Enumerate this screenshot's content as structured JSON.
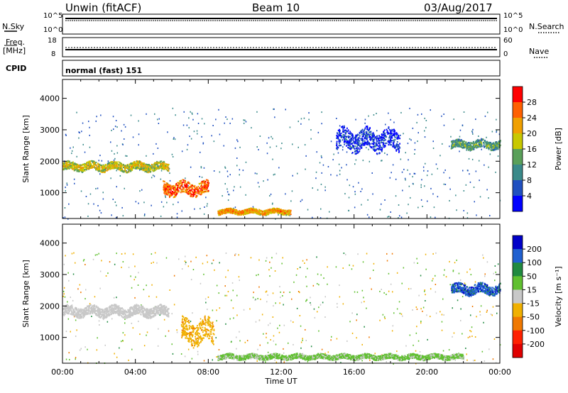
{
  "header": {
    "radar": "Unwin (fitACF)",
    "beam": "Beam 10",
    "date": "03/Aug/2017"
  },
  "strip_labels": {
    "nsky": "N.Sky",
    "nsearch": "N.Search",
    "freq": "Freq.",
    "freq_unit": "[MHz]",
    "nave": "Nave",
    "cpid": "CPID",
    "cpid_value": "normal (fast) 151"
  },
  "strip_ticks": {
    "noise_left": [
      "10^5",
      "10^0"
    ],
    "noise_right": [
      "10^5",
      "10^0"
    ],
    "freq_left": [
      "18",
      "8"
    ],
    "nave_right": [
      "60",
      "0"
    ]
  },
  "chart_data": [
    {
      "type": "heatmap",
      "panel": "power",
      "xlabel": "",
      "ylabel": "Slant Range [km]",
      "xlim": [
        0,
        24
      ],
      "ylim": [
        180,
        4600
      ],
      "yticks": [
        1000,
        2000,
        3000,
        4000
      ],
      "colorbar": {
        "label": "Power [dB]",
        "ticks": [
          "4",
          "8",
          "12",
          "16",
          "20",
          "24",
          "28"
        ],
        "colors": [
          "#0000ff",
          "#2050c0",
          "#3a8a8a",
          "#5aa05a",
          "#c8c800",
          "#f0a000",
          "#ff6000",
          "#ff0000"
        ]
      },
      "features": [
        {
          "t_start": 0.0,
          "t_end": 5.8,
          "range_center": 1850,
          "range_width": 250,
          "level_db": 20
        },
        {
          "t_start": 5.5,
          "t_end": 8.0,
          "range_center": 1150,
          "range_width": 400,
          "level_db": 28
        },
        {
          "t_start": 8.5,
          "t_end": 12.5,
          "range_center": 420,
          "range_width": 150,
          "level_db": 24
        },
        {
          "t_start": 21.3,
          "t_end": 24.0,
          "range_center": 2550,
          "range_width": 250,
          "level_db": 14
        },
        {
          "t_start": 15.0,
          "t_end": 18.5,
          "range_center": 2700,
          "range_width": 600,
          "level_db": 6
        }
      ]
    },
    {
      "type": "heatmap",
      "panel": "velocity",
      "xlabel": "Time UT",
      "ylabel": "Slant Range [km]",
      "xlim": [
        0,
        24
      ],
      "ylim": [
        180,
        4600
      ],
      "xticks": [
        "00:00",
        "04:00",
        "08:00",
        "12:00",
        "16:00",
        "20:00",
        "00:00"
      ],
      "yticks": [
        1000,
        2000,
        3000,
        4000
      ],
      "colorbar": {
        "label": "Velocity [m s⁻¹]",
        "ticks": [
          "200",
          "100",
          "50",
          "15",
          "-15",
          "-50",
          "-100",
          "-200"
        ],
        "colors": [
          "#0000c8",
          "#2060d0",
          "#208a40",
          "#60c030",
          "#c8c8c8",
          "#f0b000",
          "#f07800",
          "#ff2000",
          "#e00000"
        ]
      },
      "features": [
        {
          "t_start": 0.0,
          "t_end": 5.8,
          "range_center": 1850,
          "range_width": 300,
          "velocity": 0
        },
        {
          "t_start": 6.5,
          "t_end": 8.3,
          "range_center": 1200,
          "range_width": 700,
          "velocity": -40
        },
        {
          "t_start": 8.5,
          "t_end": 22.0,
          "range_center": 400,
          "range_width": 150,
          "velocity": 20
        },
        {
          "t_start": 21.3,
          "t_end": 24.0,
          "range_center": 2550,
          "range_width": 300,
          "velocity": 150
        }
      ]
    }
  ]
}
